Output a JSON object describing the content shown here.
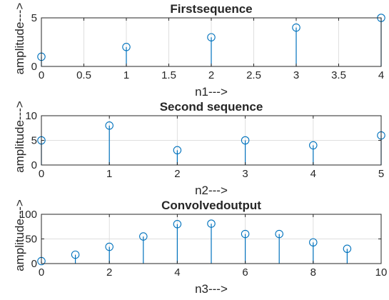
{
  "chart_data": [
    {
      "type": "stem",
      "title": "Firstsequence",
      "xlabel": "n1--->",
      "ylabel": "amplitude--->",
      "xlim": [
        0,
        4
      ],
      "ylim": [
        0,
        5
      ],
      "xticks": [
        0,
        0.5,
        1,
        1.5,
        2,
        2.5,
        3,
        3.5,
        4
      ],
      "xtick_labels": [
        "0",
        "0.5",
        "1",
        "1.5",
        "2",
        "2.5",
        "3",
        "3.5",
        "4"
      ],
      "yticks": [
        0,
        5
      ],
      "ytick_labels": [
        "0",
        "5"
      ],
      "grid": true,
      "series": [
        {
          "x": [
            0,
            1,
            2,
            3,
            4
          ],
          "y": [
            1,
            2,
            3,
            4,
            5
          ]
        }
      ]
    },
    {
      "type": "stem",
      "title": "Second sequence",
      "xlabel": "n2--->",
      "ylabel": "amplitude--->",
      "xlim": [
        0,
        5
      ],
      "ylim": [
        0,
        10
      ],
      "xticks": [
        0,
        1,
        2,
        3,
        4,
        5
      ],
      "xtick_labels": [
        "0",
        "1",
        "2",
        "3",
        "4",
        "5"
      ],
      "yticks": [
        0,
        5,
        10
      ],
      "ytick_labels": [
        "0",
        "5",
        "10"
      ],
      "grid": true,
      "series": [
        {
          "x": [
            0,
            1,
            2,
            3,
            4,
            5
          ],
          "y": [
            5,
            8,
            3,
            5,
            4,
            6
          ]
        }
      ]
    },
    {
      "type": "stem",
      "title": "Convolvedoutput",
      "xlabel": "n3--->",
      "ylabel": "amplitude--->",
      "xlim": [
        0,
        10
      ],
      "ylim": [
        0,
        100
      ],
      "xticks": [
        0,
        2,
        4,
        6,
        8,
        10
      ],
      "xtick_labels": [
        "0",
        "2",
        "4",
        "6",
        "8",
        "10"
      ],
      "yticks": [
        0,
        50,
        100
      ],
      "ytick_labels": [
        "0",
        "50",
        "100"
      ],
      "grid": true,
      "series": [
        {
          "x": [
            0,
            1,
            2,
            3,
            4,
            5,
            6,
            7,
            8,
            9
          ],
          "y": [
            5,
            18,
            34,
            55,
            80,
            81,
            60,
            60,
            43,
            30
          ]
        }
      ]
    }
  ],
  "colors": {
    "stem": "#0072bd",
    "axes": "#262626",
    "grid": "#dfdfdf"
  }
}
